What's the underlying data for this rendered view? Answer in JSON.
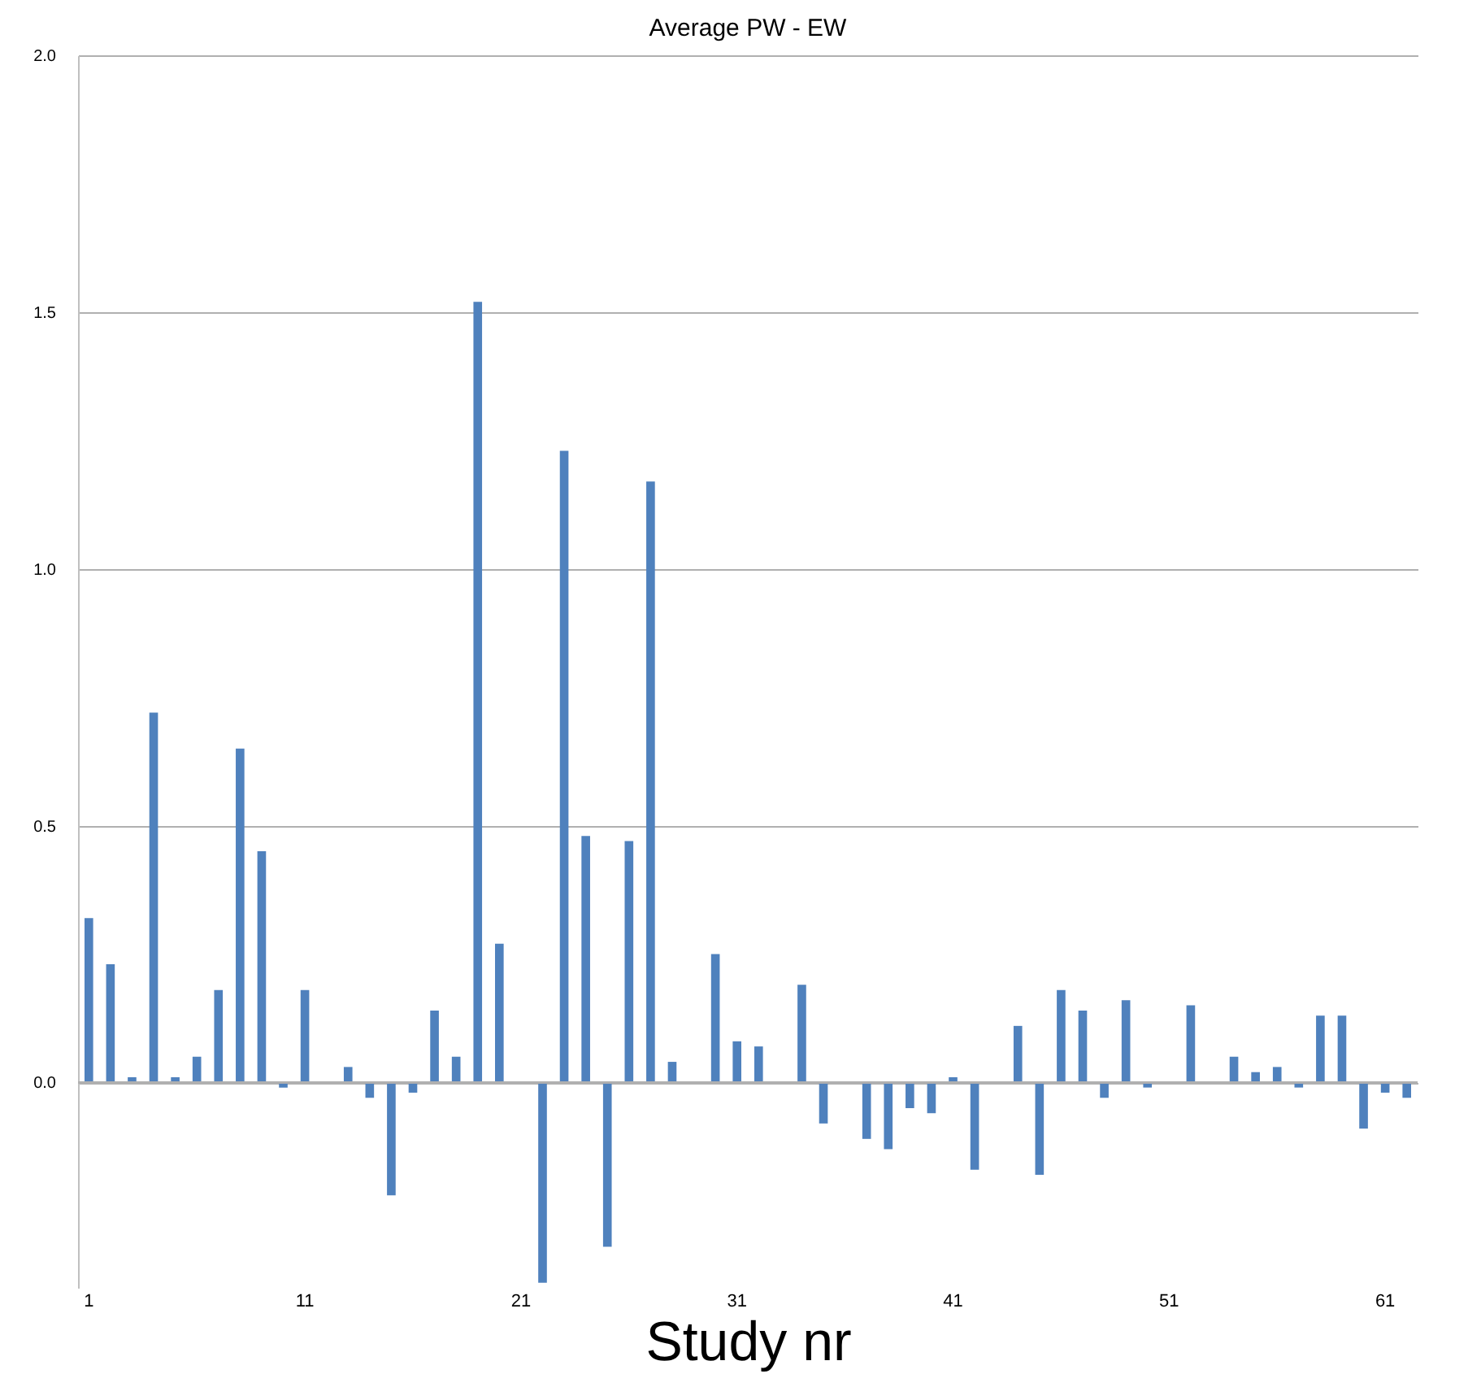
{
  "chart_data": {
    "type": "bar",
    "title": "Average PW - EW",
    "xlabel": "Study nr",
    "categories": [
      "1",
      null,
      null,
      null,
      null,
      null,
      null,
      null,
      null,
      null,
      "11",
      null,
      null,
      null,
      null,
      null,
      null,
      null,
      null,
      null,
      "21",
      null,
      null,
      null,
      null,
      null,
      null,
      null,
      null,
      null,
      "31",
      null,
      null,
      null,
      null,
      null,
      null,
      null,
      null,
      null,
      "41",
      null,
      null,
      null,
      null,
      null,
      null,
      null,
      null,
      null,
      "51",
      null,
      null,
      null,
      null,
      null,
      null,
      null,
      null,
      null,
      "61",
      null
    ],
    "values": [
      0.32,
      0.23,
      0.01,
      0.72,
      0.01,
      0.05,
      0.18,
      0.65,
      0.45,
      -0.01,
      0.18,
      0.0,
      0.03,
      -0.03,
      -0.22,
      -0.02,
      0.14,
      0.05,
      1.52,
      0.27,
      0.0,
      -0.39,
      1.23,
      0.48,
      -0.32,
      0.47,
      1.17,
      0.04,
      0.0,
      0.25,
      0.08,
      0.07,
      0.0,
      0.19,
      -0.08,
      0.0,
      -0.11,
      -0.13,
      -0.05,
      -0.06,
      0.01,
      -0.17,
      0.0,
      0.11,
      -0.18,
      0.18,
      0.14,
      -0.03,
      0.16,
      -0.01,
      0.0,
      0.15,
      0.0,
      0.05,
      0.02,
      0.03,
      -0.01,
      0.13,
      0.13,
      -0.09,
      -0.02,
      -0.03
    ],
    "color": "#4f81bd",
    "ylim": [
      -0.4,
      2.0
    ],
    "yticks": [
      {
        "value": 0,
        "label": "0.0"
      },
      {
        "value": 0.5,
        "label": "0.5"
      },
      {
        "value": 1,
        "label": "1.0"
      },
      {
        "value": 1.5,
        "label": "1.5"
      },
      {
        "value": 2,
        "label": "2.0"
      }
    ],
    "grid": "y"
  }
}
